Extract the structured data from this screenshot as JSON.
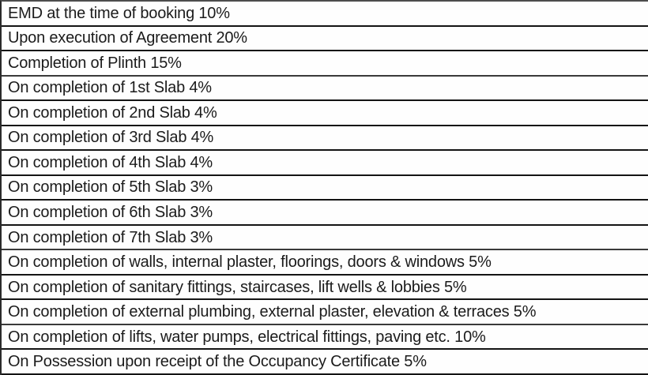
{
  "document": {
    "type": "payment-schedule-table",
    "colors": {
      "text": "#1b1b1b",
      "border": "#141414",
      "background": "#fefefe"
    },
    "table": {
      "rows": [
        "EMD at the time of booking 10%",
        "Upon execution of Agreement 20%",
        "Completion of Plinth 15%",
        "On completion of 1st Slab 4%",
        "On completion of 2nd Slab 4%",
        "On completion of 3rd Slab 4%",
        "On completion of 4th Slab 4%",
        "On completion of 5th Slab 3%",
        "On completion of 6th Slab 3%",
        "On completion of 7th Slab 3%",
        "On completion of walls, internal plaster, floorings, doors & windows 5%",
        "On completion of sanitary fittings, staircases, lift wells & lobbies 5%",
        "On completion of external plumbing, external plaster, elevation & terraces 5%",
        "On completion of lifts, water pumps, electrical fittings, paving etc. 10%",
        "On Possession upon receipt of the Occupancy Certificate 5%"
      ]
    }
  }
}
